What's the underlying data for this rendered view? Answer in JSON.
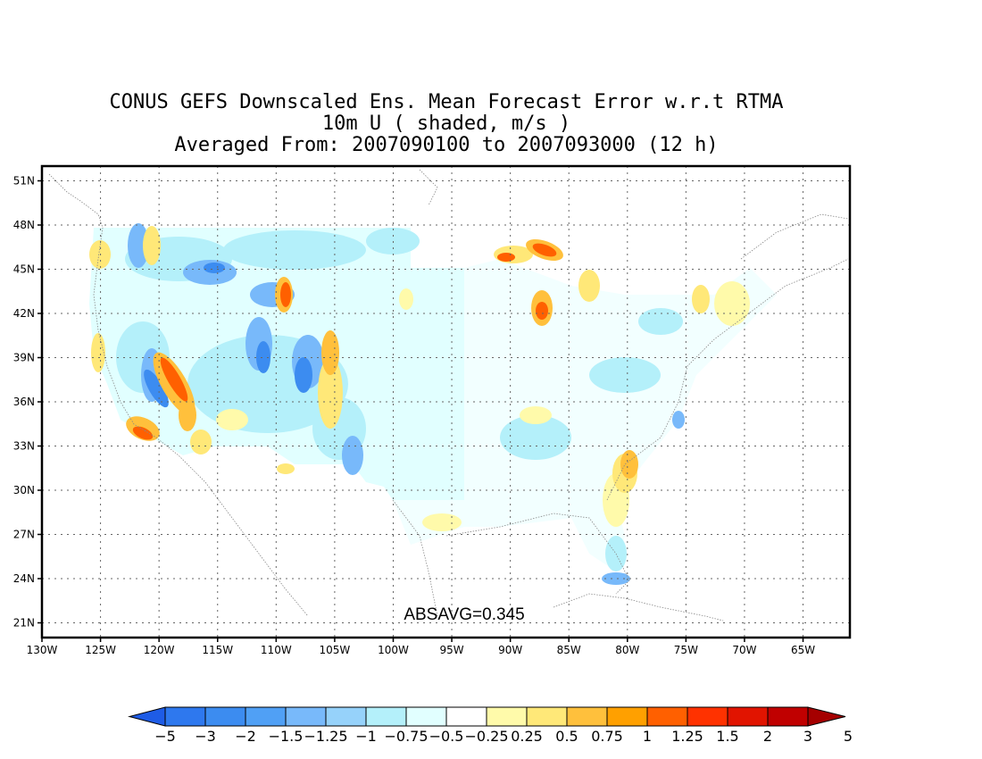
{
  "title": {
    "line1": "CONUS GEFS Downscaled Ens. Mean Forecast Error w.r.t RTMA",
    "line2": "10m U ( shaded, m/s )",
    "line3": "Averaged From: 2007090100 to 2007093000 (12 h)"
  },
  "map": {
    "lon_range": [
      -130,
      -61
    ],
    "lat_range": [
      20,
      52
    ],
    "lon_ticks": [
      "130W",
      "125W",
      "120W",
      "115W",
      "110W",
      "105W",
      "100W",
      "95W",
      "90W",
      "85W",
      "80W",
      "75W",
      "70W",
      "65W"
    ],
    "lat_ticks": [
      "21N",
      "24N",
      "27N",
      "30N",
      "33N",
      "36N",
      "39N",
      "42N",
      "45N",
      "48N",
      "51N"
    ],
    "grid": true,
    "annotation": "ABSAVG=0.345"
  },
  "colorbar": {
    "labels": [
      "−5",
      "−3",
      "−2",
      "−1.5",
      "−1.25",
      "−1",
      "−0.75",
      "−0.5",
      "−0.25",
      "0.25",
      "0.5",
      "0.75",
      "1",
      "1.25",
      "1.5",
      "2",
      "3",
      "5"
    ],
    "colors": [
      "#1e5ce6",
      "#2e78ee",
      "#3c8cf0",
      "#50a0f5",
      "#78b9fa",
      "#96d2fa",
      "#b4f0fa",
      "#e1ffff",
      "#ffffff",
      "#fffaaa",
      "#ffe878",
      "#ffc03c",
      "#ffa000",
      "#ff6000",
      "#ff3200",
      "#e11400",
      "#c00000",
      "#a50000"
    ]
  },
  "chart_data": {
    "type": "heatmap",
    "field": "10m U forecast error",
    "units": "m/s",
    "absavg": 0.345
  }
}
